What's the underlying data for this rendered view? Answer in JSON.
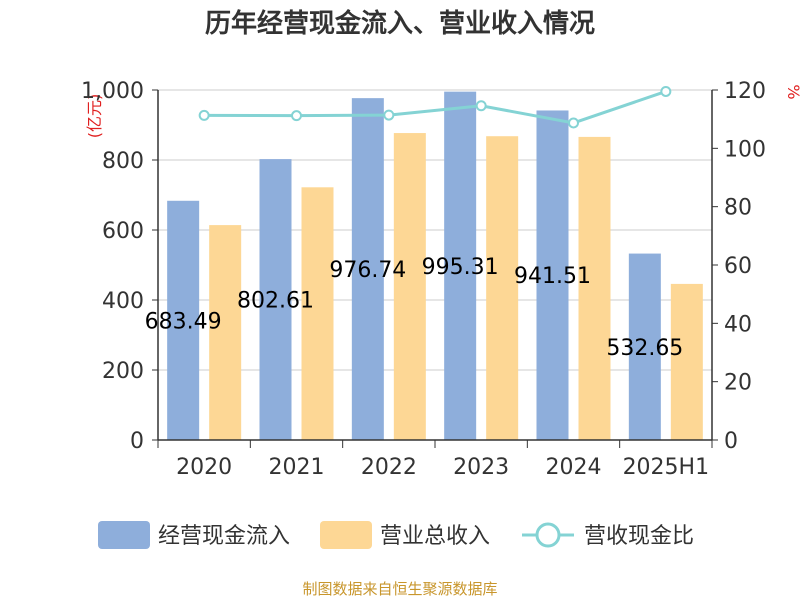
{
  "chart_data": {
    "type": "bar",
    "title": "历年经营现金流入、营业收入情况",
    "categories": [
      "2020",
      "2021",
      "2022",
      "2023",
      "2024",
      "2025H1"
    ],
    "y_left_unit": "(亿元)",
    "y_right_unit": "%",
    "ylim": [
      0,
      1000
    ],
    "y2lim": [
      0,
      120
    ],
    "y_ticks": [
      "0",
      "200",
      "400",
      "600",
      "800",
      "1,000"
    ],
    "y2_ticks": [
      "0",
      "20",
      "40",
      "60",
      "80",
      "100",
      "120"
    ],
    "grid": true,
    "legend_position": "bottom",
    "series": [
      {
        "name": "经营现金流入",
        "type": "bar",
        "axis": "left",
        "color": "#8eaedb",
        "values": [
          683.49,
          802.61,
          976.74,
          995.31,
          941.51,
          532.65
        ],
        "labels": [
          "683.49",
          "802.61",
          "976.74",
          "995.31",
          "941.51",
          "532.65"
        ]
      },
      {
        "name": "营业总收入",
        "type": "bar",
        "axis": "left",
        "color": "#fdd795",
        "values": [
          614,
          722,
          877,
          868,
          866,
          446
        ]
      },
      {
        "name": "营收现金比",
        "type": "line",
        "axis": "right",
        "color": "#84d3d4",
        "values": [
          111.3,
          111.2,
          111.4,
          114.6,
          108.7,
          119.5
        ]
      }
    ]
  },
  "source_text": "制图数据来自恒生聚源数据库"
}
